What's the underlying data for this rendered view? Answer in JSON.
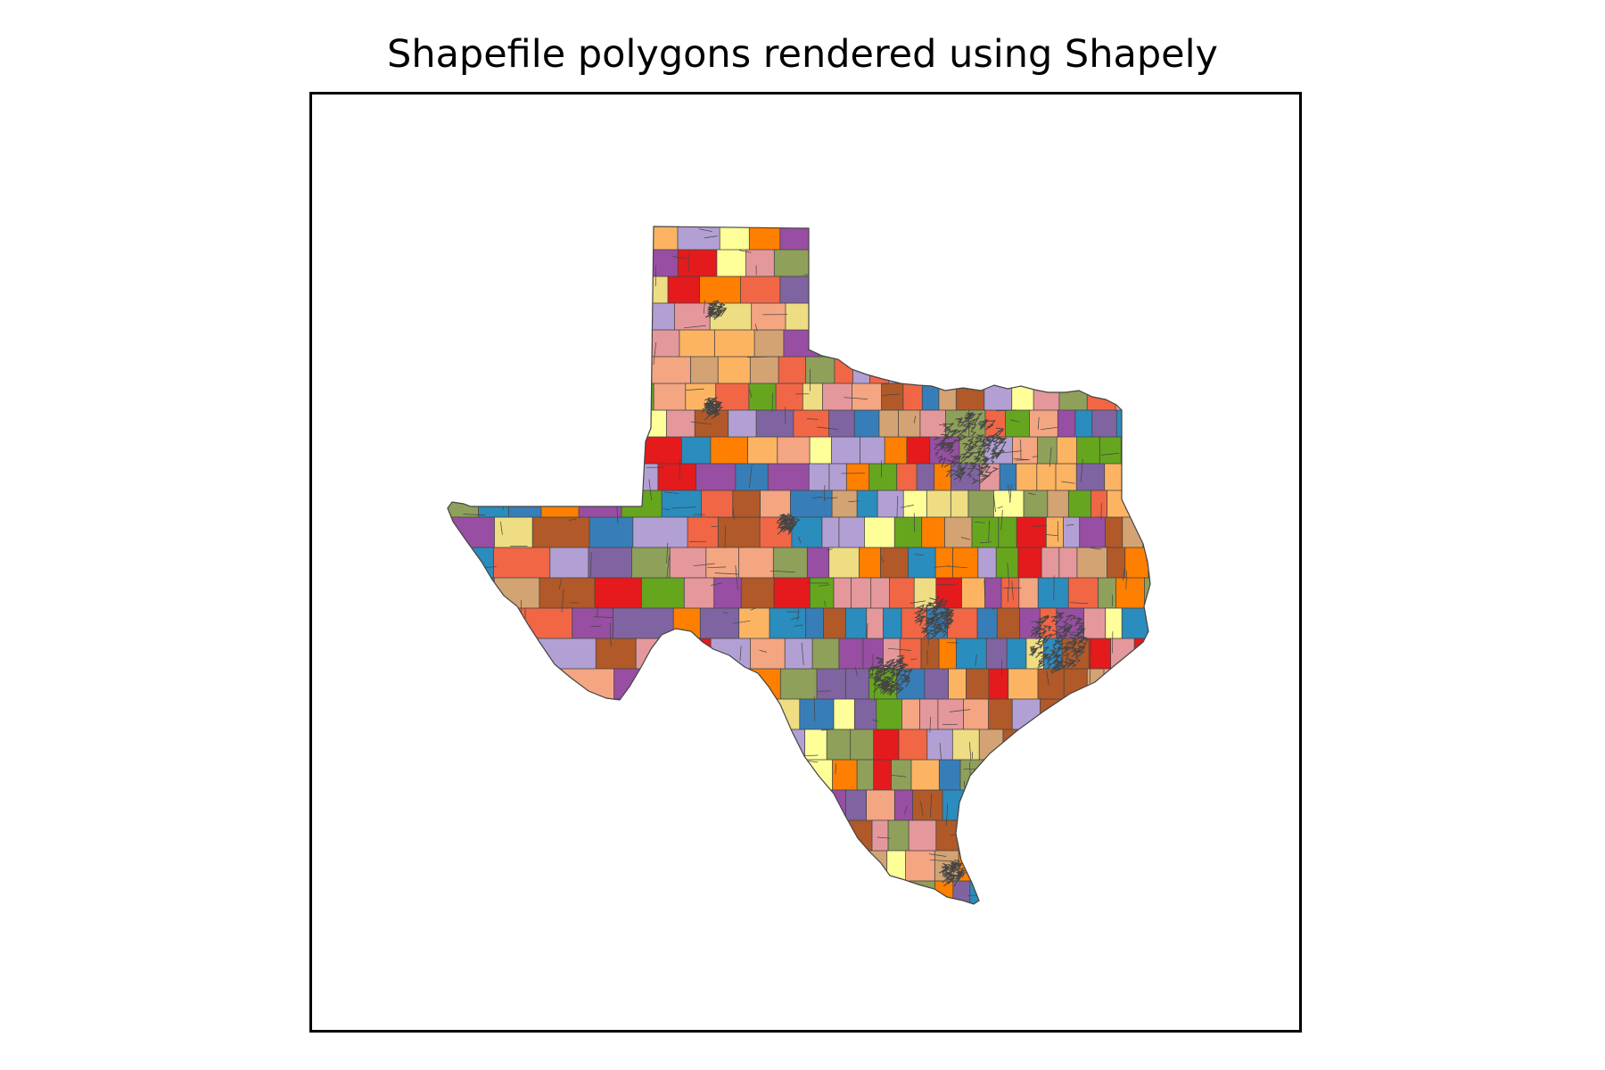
{
  "figure": {
    "title": "Shapefile polygons rendered using Shapely"
  },
  "map": {
    "region": "Texas",
    "layer": "polygon tracts",
    "palette": [
      "#e41a1c",
      "#f16645",
      "#fdb462",
      "#ff7f00",
      "#ffff99",
      "#eedd82",
      "#984ea3",
      "#8064a2",
      "#b2a0d4",
      "#377eb8",
      "#2b8cbe",
      "#66a61e",
      "#8fa05a",
      "#b15928",
      "#d4a373",
      "#e5989b",
      "#f4a582"
    ],
    "stroke_color": "#444444",
    "background": "#ffffff",
    "frame_color": "#000000",
    "axes_ticks_visible": false
  }
}
